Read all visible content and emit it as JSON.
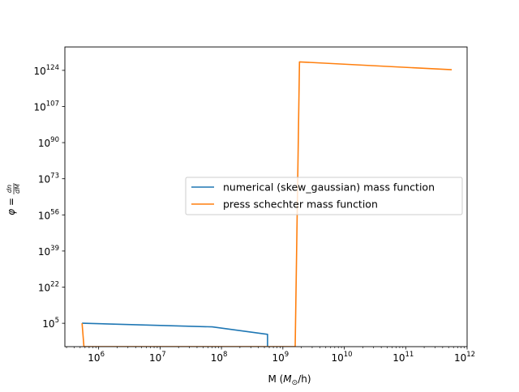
{
  "chart_data": {
    "type": "line",
    "xlabel": "M (M⊙/h)",
    "ylabel": "φ = dn/dM",
    "xscale": "log",
    "yscale": "log",
    "xlim_log10": [
      5.45,
      12.0
    ],
    "ylim_log10": [
      -6,
      135
    ],
    "x_ticks": [
      {
        "base": "10",
        "exp": "6",
        "log10": 6
      },
      {
        "base": "10",
        "exp": "7",
        "log10": 7
      },
      {
        "base": "10",
        "exp": "8",
        "log10": 8
      },
      {
        "base": "10",
        "exp": "9",
        "log10": 9
      },
      {
        "base": "10",
        "exp": "10",
        "log10": 10
      },
      {
        "base": "10",
        "exp": "11",
        "log10": 11
      },
      {
        "base": "10",
        "exp": "12",
        "log10": 12
      }
    ],
    "y_ticks": [
      {
        "base": "10",
        "exp": "5",
        "log10": 5
      },
      {
        "base": "10",
        "exp": "22",
        "log10": 22
      },
      {
        "base": "10",
        "exp": "39",
        "log10": 39
      },
      {
        "base": "10",
        "exp": "56",
        "log10": 56
      },
      {
        "base": "10",
        "exp": "73",
        "log10": 73
      },
      {
        "base": "10",
        "exp": "90",
        "log10": 90
      },
      {
        "base": "10",
        "exp": "107",
        "log10": 107
      },
      {
        "base": "10",
        "exp": "124",
        "log10": 124
      }
    ],
    "legend_position": "center-right",
    "series": [
      {
        "name": "numerical (skew_gaussian) mass function",
        "color": "#1f77b4",
        "points_log10": [
          [
            5.73,
            5.0
          ],
          [
            7.85,
            3.3
          ],
          [
            8.75,
            -0.2
          ],
          [
            8.75,
            -6
          ]
        ]
      },
      {
        "name": "press schechter mass function",
        "color": "#ff7f0e",
        "points_log10": [
          [
            5.73,
            5.0
          ],
          [
            5.76,
            -6
          ],
          [
            9.2,
            -6
          ],
          [
            9.27,
            128.0
          ],
          [
            11.75,
            124.3
          ]
        ]
      }
    ]
  }
}
